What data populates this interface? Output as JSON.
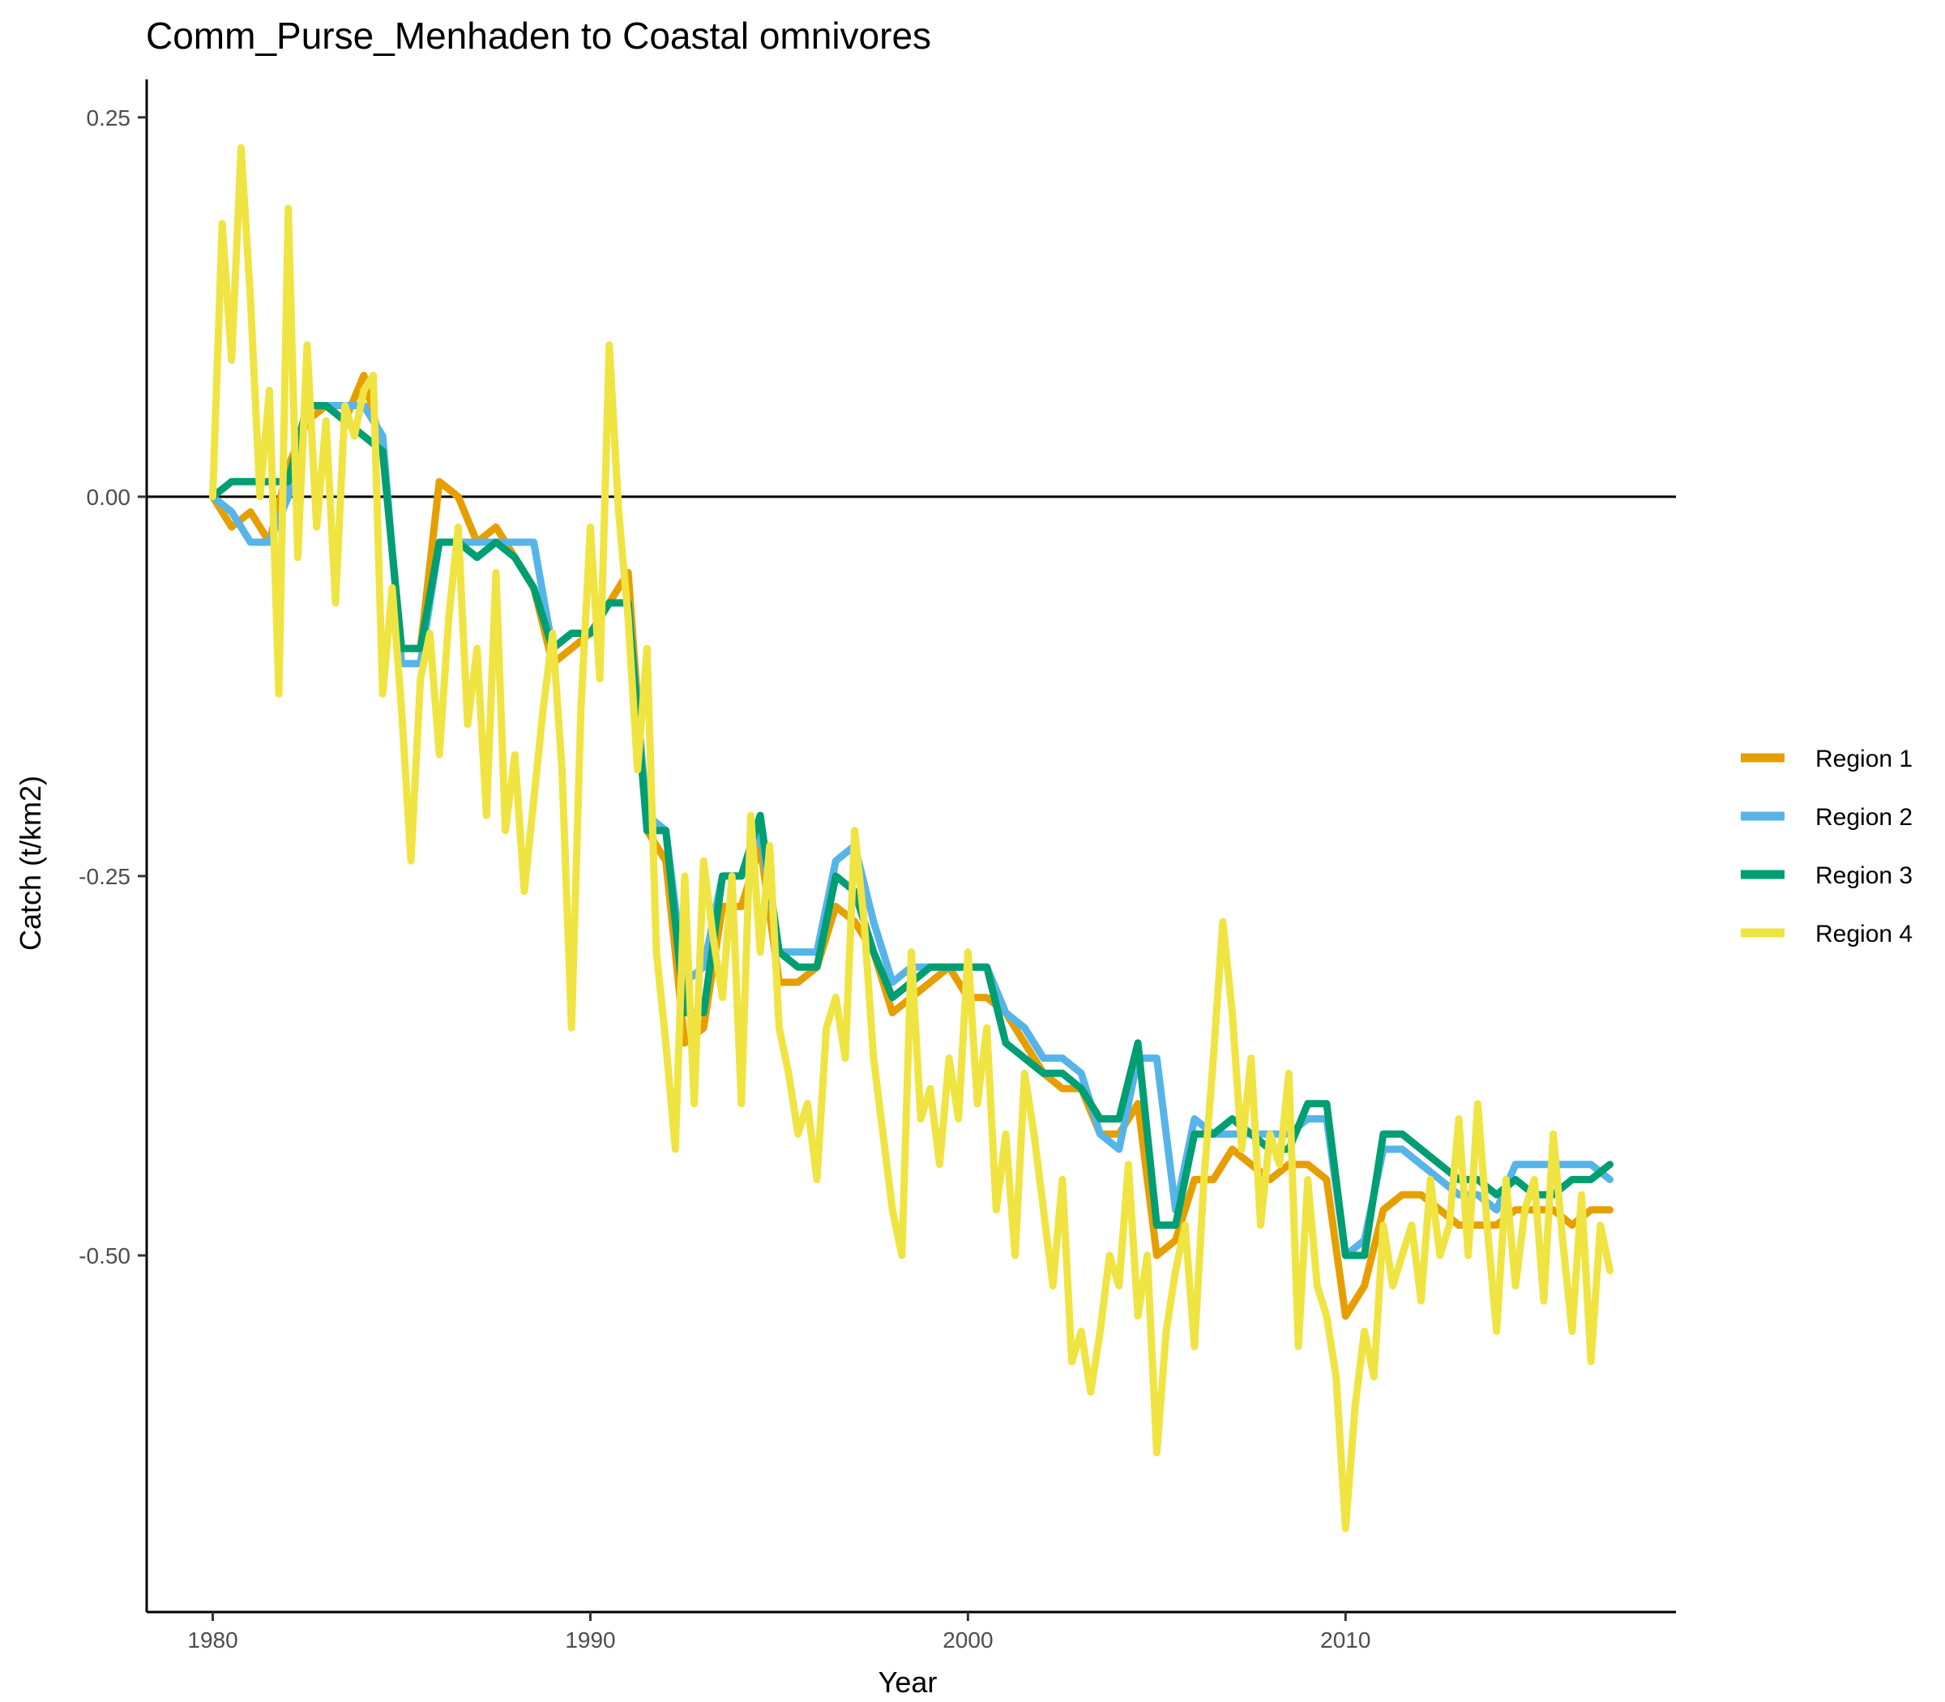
{
  "chart_data": {
    "type": "line",
    "title": "Comm_Purse_Menhaden to Coastal omnivores",
    "xlabel": "Year",
    "ylabel": "Catch (t/km2)",
    "xlim": [
      1978.25,
      2018.75
    ],
    "ylim": [
      -0.735,
      0.275
    ],
    "x_ticks": [
      1980,
      1990,
      2000,
      2010
    ],
    "x_tick_labels": [
      "1980",
      "1990",
      "2000",
      "2010"
    ],
    "y_ticks": [
      0.25,
      0.0,
      -0.25,
      -0.5
    ],
    "y_tick_labels": [
      "0.25",
      "0.00",
      "-0.25",
      "-0.50"
    ],
    "reference_line_y": 0,
    "grid": false,
    "legend_position": "right",
    "series": [
      {
        "name": "Region 1",
        "color": "#E69F00",
        "x": [
          1980.0,
          1980.5,
          1981.0,
          1981.5,
          1982.0,
          1982.5,
          1983.0,
          1983.5,
          1984.0,
          1984.5,
          1985.0,
          1985.5,
          1986.0,
          1986.5,
          1987.0,
          1987.5,
          1988.0,
          1988.5,
          1989.0,
          1989.5,
          1990.0,
          1990.5,
          1991.0,
          1991.5,
          1992.0,
          1992.5,
          1993.0,
          1993.5,
          1994.0,
          1994.5,
          1995.0,
          1995.5,
          1996.0,
          1996.5,
          1997.0,
          1997.5,
          1998.0,
          1998.5,
          1999.0,
          1999.5,
          2000.0,
          2000.5,
          2001.0,
          2001.5,
          2002.0,
          2002.5,
          2003.0,
          2003.5,
          2004.0,
          2004.5,
          2005.0,
          2005.5,
          2006.0,
          2006.5,
          2007.0,
          2007.5,
          2008.0,
          2008.5,
          2009.0,
          2009.5,
          2010.0,
          2010.5,
          2011.0,
          2011.5,
          2012.0,
          2012.5,
          2013.0,
          2013.5,
          2014.0,
          2014.5,
          2015.0,
          2015.5,
          2016.0,
          2016.5,
          2017.0
        ],
        "y": [
          0.0,
          -0.02,
          -0.01,
          -0.03,
          0.02,
          0.05,
          0.06,
          0.05,
          0.08,
          0.03,
          -0.1,
          -0.1,
          0.01,
          0.0,
          -0.03,
          -0.02,
          -0.04,
          -0.06,
          -0.11,
          -0.1,
          -0.09,
          -0.07,
          -0.05,
          -0.22,
          -0.24,
          -0.36,
          -0.35,
          -0.27,
          -0.27,
          -0.23,
          -0.32,
          -0.32,
          -0.31,
          -0.27,
          -0.28,
          -0.3,
          -0.34,
          -0.33,
          -0.32,
          -0.31,
          -0.33,
          -0.33,
          -0.34,
          -0.36,
          -0.38,
          -0.39,
          -0.39,
          -0.42,
          -0.42,
          -0.4,
          -0.5,
          -0.49,
          -0.45,
          -0.45,
          -0.43,
          -0.44,
          -0.45,
          -0.44,
          -0.44,
          -0.45,
          -0.54,
          -0.52,
          -0.47,
          -0.46,
          -0.46,
          -0.47,
          -0.48,
          -0.48,
          -0.48,
          -0.47,
          -0.47,
          -0.47,
          -0.48,
          -0.47,
          -0.47
        ]
      },
      {
        "name": "Region 2",
        "color": "#56B4E9",
        "x": [
          1980.0,
          1980.5,
          1981.0,
          1981.5,
          1982.0,
          1982.5,
          1983.0,
          1983.5,
          1984.0,
          1984.5,
          1985.0,
          1985.5,
          1986.0,
          1986.5,
          1987.0,
          1987.5,
          1988.0,
          1988.5,
          1989.0,
          1989.5,
          1990.0,
          1990.5,
          1991.0,
          1991.5,
          1992.0,
          1992.5,
          1993.0,
          1993.5,
          1994.0,
          1994.5,
          1995.0,
          1995.5,
          1996.0,
          1996.5,
          1997.0,
          1997.5,
          1998.0,
          1998.5,
          1999.0,
          1999.5,
          2000.0,
          2000.5,
          2001.0,
          2001.5,
          2002.0,
          2002.5,
          2003.0,
          2003.5,
          2004.0,
          2004.5,
          2005.0,
          2005.5,
          2006.0,
          2006.5,
          2007.0,
          2007.5,
          2008.0,
          2008.5,
          2009.0,
          2009.5,
          2010.0,
          2010.5,
          2011.0,
          2011.5,
          2012.0,
          2012.5,
          2013.0,
          2013.5,
          2014.0,
          2014.5,
          2015.0,
          2015.5,
          2016.0,
          2016.5,
          2017.0
        ],
        "y": [
          0.0,
          -0.01,
          -0.03,
          -0.03,
          0.0,
          0.06,
          0.06,
          0.06,
          0.06,
          0.04,
          -0.11,
          -0.11,
          -0.03,
          -0.03,
          -0.03,
          -0.03,
          -0.03,
          -0.03,
          -0.1,
          -0.09,
          -0.09,
          -0.07,
          -0.07,
          -0.21,
          -0.22,
          -0.32,
          -0.31,
          -0.25,
          -0.25,
          -0.22,
          -0.3,
          -0.3,
          -0.3,
          -0.24,
          -0.23,
          -0.28,
          -0.32,
          -0.31,
          -0.31,
          -0.31,
          -0.31,
          -0.31,
          -0.34,
          -0.35,
          -0.37,
          -0.37,
          -0.38,
          -0.42,
          -0.43,
          -0.37,
          -0.37,
          -0.47,
          -0.41,
          -0.42,
          -0.42,
          -0.42,
          -0.42,
          -0.42,
          -0.41,
          -0.41,
          -0.5,
          -0.49,
          -0.43,
          -0.43,
          -0.44,
          -0.45,
          -0.46,
          -0.46,
          -0.47,
          -0.44,
          -0.44,
          -0.44,
          -0.44,
          -0.44,
          -0.45
        ]
      },
      {
        "name": "Region 3",
        "color": "#009E73",
        "x": [
          1980.0,
          1980.5,
          1981.0,
          1981.5,
          1982.0,
          1982.5,
          1983.0,
          1983.5,
          1984.0,
          1984.5,
          1985.0,
          1985.5,
          1986.0,
          1986.5,
          1987.0,
          1987.5,
          1988.0,
          1988.5,
          1989.0,
          1989.5,
          1990.0,
          1990.5,
          1991.0,
          1991.5,
          1992.0,
          1992.5,
          1993.0,
          1993.5,
          1994.0,
          1994.5,
          1995.0,
          1995.5,
          1996.0,
          1996.5,
          1997.0,
          1997.5,
          1998.0,
          1998.5,
          1999.0,
          1999.5,
          2000.0,
          2000.5,
          2001.0,
          2001.5,
          2002.0,
          2002.5,
          2003.0,
          2003.5,
          2004.0,
          2004.5,
          2005.0,
          2005.5,
          2006.0,
          2006.5,
          2007.0,
          2007.5,
          2008.0,
          2008.5,
          2009.0,
          2009.5,
          2010.0,
          2010.5,
          2011.0,
          2011.5,
          2012.0,
          2012.5,
          2013.0,
          2013.5,
          2014.0,
          2014.5,
          2015.0,
          2015.5,
          2016.0,
          2016.5,
          2017.0
        ],
        "y": [
          0.0,
          0.01,
          0.01,
          0.01,
          0.01,
          0.06,
          0.06,
          0.05,
          0.04,
          0.03,
          -0.1,
          -0.1,
          -0.03,
          -0.03,
          -0.04,
          -0.03,
          -0.04,
          -0.06,
          -0.1,
          -0.09,
          -0.09,
          -0.07,
          -0.07,
          -0.22,
          -0.22,
          -0.34,
          -0.34,
          -0.25,
          -0.25,
          -0.21,
          -0.3,
          -0.31,
          -0.31,
          -0.25,
          -0.26,
          -0.3,
          -0.33,
          -0.32,
          -0.31,
          -0.31,
          -0.31,
          -0.31,
          -0.36,
          -0.37,
          -0.38,
          -0.38,
          -0.39,
          -0.41,
          -0.41,
          -0.36,
          -0.48,
          -0.48,
          -0.42,
          -0.42,
          -0.41,
          -0.42,
          -0.43,
          -0.43,
          -0.4,
          -0.4,
          -0.5,
          -0.5,
          -0.42,
          -0.42,
          -0.43,
          -0.44,
          -0.45,
          -0.45,
          -0.46,
          -0.45,
          -0.46,
          -0.46,
          -0.45,
          -0.45,
          -0.44
        ]
      },
      {
        "name": "Region 4",
        "color": "#F0E442",
        "x": [
          1980.0,
          1980.25,
          1980.5,
          1980.75,
          1981.0,
          1981.25,
          1981.5,
          1981.75,
          1982.0,
          1982.25,
          1982.5,
          1982.75,
          1983.0,
          1983.25,
          1983.5,
          1983.75,
          1984.0,
          1984.25,
          1984.5,
          1984.75,
          1985.0,
          1985.25,
          1985.5,
          1985.75,
          1986.0,
          1986.25,
          1986.5,
          1986.75,
          1987.0,
          1987.25,
          1987.5,
          1987.75,
          1988.0,
          1988.25,
          1988.5,
          1988.75,
          1989.0,
          1989.25,
          1989.5,
          1989.75,
          1990.0,
          1990.25,
          1990.5,
          1990.75,
          1991.0,
          1991.25,
          1991.5,
          1991.75,
          1992.0,
          1992.25,
          1992.5,
          1992.75,
          1993.0,
          1993.25,
          1993.5,
          1993.75,
          1994.0,
          1994.25,
          1994.5,
          1994.75,
          1995.0,
          1995.25,
          1995.5,
          1995.75,
          1996.0,
          1996.25,
          1996.5,
          1996.75,
          1997.0,
          1997.25,
          1997.5,
          1997.75,
          1998.0,
          1998.25,
          1998.5,
          1998.75,
          1999.0,
          1999.25,
          1999.5,
          1999.75,
          2000.0,
          2000.25,
          2000.5,
          2000.75,
          2001.0,
          2001.25,
          2001.5,
          2001.75,
          2002.0,
          2002.25,
          2002.5,
          2002.75,
          2003.0,
          2003.25,
          2003.5,
          2003.75,
          2004.0,
          2004.25,
          2004.5,
          2004.75,
          2005.0,
          2005.25,
          2005.5,
          2005.75,
          2006.0,
          2006.25,
          2006.5,
          2006.75,
          2007.0,
          2007.25,
          2007.5,
          2007.75,
          2008.0,
          2008.25,
          2008.5,
          2008.75,
          2009.0,
          2009.25,
          2009.5,
          2009.75,
          2010.0,
          2010.25,
          2010.5,
          2010.75,
          2011.0,
          2011.25,
          2011.5,
          2011.75,
          2012.0,
          2012.25,
          2012.5,
          2012.75,
          2013.0,
          2013.25,
          2013.5,
          2013.75,
          2014.0,
          2014.25,
          2014.5,
          2014.75,
          2015.0,
          2015.25,
          2015.5,
          2015.75,
          2016.0,
          2016.25,
          2016.5,
          2016.75,
          2017.0
        ],
        "y": [
          0.0,
          0.18,
          0.09,
          0.23,
          0.13,
          0.0,
          0.07,
          -0.13,
          0.19,
          -0.04,
          0.1,
          -0.02,
          0.05,
          -0.07,
          0.06,
          0.04,
          0.07,
          0.08,
          -0.13,
          -0.06,
          -0.14,
          -0.24,
          -0.12,
          -0.09,
          -0.17,
          -0.08,
          -0.02,
          -0.15,
          -0.1,
          -0.21,
          -0.05,
          -0.22,
          -0.17,
          -0.26,
          -0.2,
          -0.14,
          -0.09,
          -0.18,
          -0.35,
          -0.14,
          -0.02,
          -0.12,
          0.1,
          -0.01,
          -0.08,
          -0.18,
          -0.1,
          -0.3,
          -0.36,
          -0.43,
          -0.25,
          -0.4,
          -0.24,
          -0.29,
          -0.33,
          -0.25,
          -0.4,
          -0.21,
          -0.3,
          -0.23,
          -0.35,
          -0.38,
          -0.42,
          -0.4,
          -0.45,
          -0.35,
          -0.33,
          -0.37,
          -0.22,
          -0.28,
          -0.37,
          -0.42,
          -0.47,
          -0.5,
          -0.3,
          -0.41,
          -0.39,
          -0.44,
          -0.37,
          -0.41,
          -0.3,
          -0.4,
          -0.35,
          -0.47,
          -0.42,
          -0.5,
          -0.38,
          -0.42,
          -0.47,
          -0.52,
          -0.45,
          -0.57,
          -0.55,
          -0.59,
          -0.55,
          -0.5,
          -0.52,
          -0.44,
          -0.54,
          -0.5,
          -0.63,
          -0.55,
          -0.51,
          -0.48,
          -0.56,
          -0.45,
          -0.37,
          -0.28,
          -0.34,
          -0.43,
          -0.37,
          -0.48,
          -0.42,
          -0.44,
          -0.38,
          -0.56,
          -0.45,
          -0.52,
          -0.54,
          -0.58,
          -0.68,
          -0.6,
          -0.55,
          -0.58,
          -0.48,
          -0.52,
          -0.5,
          -0.48,
          -0.53,
          -0.45,
          -0.5,
          -0.48,
          -0.41,
          -0.5,
          -0.4,
          -0.48,
          -0.55,
          -0.45,
          -0.52,
          -0.47,
          -0.45,
          -0.53,
          -0.42,
          -0.49,
          -0.55,
          -0.46,
          -0.57,
          -0.48,
          -0.51
        ]
      }
    ]
  }
}
